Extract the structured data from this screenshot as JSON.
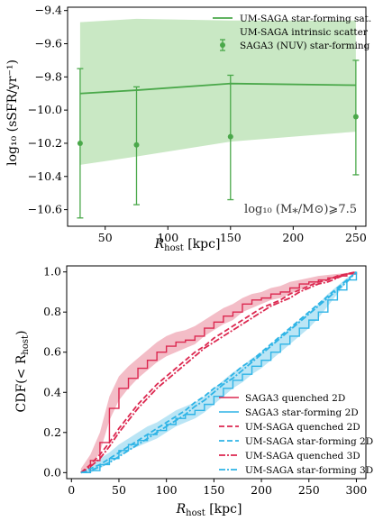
{
  "chart_data": [
    {
      "type": "line",
      "xlabel_main": "R",
      "xlabel_sub": "host",
      "xlabel_unit": " [kpc]",
      "ylabel": "log₁₀ (sSFR/yr⁻¹)",
      "xlim": [
        20,
        258
      ],
      "ylim": [
        -10.7,
        -9.38
      ],
      "xticks": [
        50,
        100,
        150,
        200,
        250
      ],
      "yticks": [
        -10.6,
        -10.4,
        -10.2,
        -10.0,
        -9.8,
        -9.6,
        -9.4
      ],
      "ytick_labels": [
        "−10.6",
        "−10.4",
        "−10.2",
        "−10.0",
        "−9.8",
        "−9.6",
        "−9.4"
      ],
      "annotation": "log₁₀ (M⁎/M⊙)⩾7.5",
      "legend_position": "top-right",
      "colors": {
        "line": "#4aa84a",
        "band": "#c9e8c4"
      },
      "series": [
        {
          "name": "UM-SAGA star-forming sat.",
          "kind": "line",
          "x": [
            30,
            75,
            150,
            250
          ],
          "y": [
            -9.9,
            -9.88,
            -9.84,
            -9.85
          ]
        },
        {
          "name": "UM-SAGA intrinsic scatter",
          "kind": "band",
          "x": [
            30,
            75,
            150,
            250
          ],
          "y_low": [
            -10.33,
            -10.28,
            -10.19,
            -10.13
          ],
          "y_high": [
            -9.47,
            -9.45,
            -9.46,
            -9.46
          ]
        },
        {
          "name": "SAGA3 (NUV) star-forming",
          "kind": "errorbar",
          "x": [
            30,
            75,
            150,
            250
          ],
          "y": [
            -10.2,
            -10.21,
            -10.16,
            -10.04
          ],
          "y_err_low": [
            -10.65,
            -10.57,
            -10.54,
            -10.39
          ],
          "y_err_high": [
            -9.75,
            -9.86,
            -9.79,
            -9.7
          ]
        }
      ]
    },
    {
      "type": "line",
      "xlabel_main": "R",
      "xlabel_sub": "host",
      "xlabel_unit": " [kpc]",
      "ylabel": "CDF(< R_host)",
      "ylabel_main": "CDF(< R",
      "ylabel_sub": "host",
      "ylabel_close": ")",
      "xlim": [
        -5,
        310
      ],
      "ylim": [
        -0.03,
        1.03
      ],
      "xticks": [
        0,
        50,
        100,
        150,
        200,
        250,
        300
      ],
      "yticks": [
        0.0,
        0.2,
        0.4,
        0.6,
        0.8,
        1.0
      ],
      "ytick_labels": [
        "0.0",
        "0.2",
        "0.4",
        "0.6",
        "0.8",
        "1.0"
      ],
      "legend_position": "lower-right",
      "colors": {
        "quenched": "#dc2850",
        "starforming": "#2eb4e6",
        "quenched_band": "#f2b6c1",
        "starforming_band": "#b3e2f4"
      },
      "series": [
        {
          "name": "SAGA3 quenched 2D",
          "kind": "step",
          "x": [
            10,
            20,
            30,
            40,
            50,
            60,
            70,
            80,
            90,
            100,
            110,
            120,
            130,
            140,
            150,
            160,
            170,
            180,
            190,
            200,
            210,
            220,
            230,
            240,
            250,
            260,
            270,
            280,
            290,
            300
          ],
          "y": [
            0.0,
            0.06,
            0.15,
            0.32,
            0.42,
            0.47,
            0.52,
            0.56,
            0.6,
            0.63,
            0.65,
            0.66,
            0.68,
            0.72,
            0.75,
            0.78,
            0.8,
            0.84,
            0.86,
            0.87,
            0.89,
            0.9,
            0.92,
            0.94,
            0.95,
            0.96,
            0.97,
            0.98,
            0.99,
            1.0
          ],
          "band_low": [
            0.0,
            0.03,
            0.1,
            0.26,
            0.36,
            0.42,
            0.47,
            0.51,
            0.55,
            0.58,
            0.6,
            0.62,
            0.64,
            0.68,
            0.71,
            0.74,
            0.76,
            0.8,
            0.82,
            0.84,
            0.86,
            0.87,
            0.89,
            0.91,
            0.93,
            0.94,
            0.96,
            0.97,
            0.985,
            1.0
          ],
          "band_high": [
            0.02,
            0.09,
            0.2,
            0.38,
            0.48,
            0.53,
            0.57,
            0.61,
            0.65,
            0.68,
            0.7,
            0.71,
            0.73,
            0.76,
            0.79,
            0.82,
            0.84,
            0.87,
            0.89,
            0.9,
            0.92,
            0.93,
            0.95,
            0.96,
            0.97,
            0.98,
            0.985,
            0.99,
            0.995,
            1.0
          ]
        },
        {
          "name": "SAGA3 star-forming 2D",
          "kind": "step",
          "x": [
            10,
            20,
            30,
            40,
            50,
            60,
            70,
            80,
            90,
            100,
            110,
            120,
            130,
            140,
            150,
            160,
            170,
            180,
            190,
            200,
            210,
            220,
            230,
            240,
            250,
            260,
            270,
            280,
            290,
            300
          ],
          "y": [
            0.0,
            0.01,
            0.04,
            0.07,
            0.11,
            0.14,
            0.16,
            0.19,
            0.21,
            0.24,
            0.27,
            0.29,
            0.31,
            0.34,
            0.38,
            0.42,
            0.46,
            0.49,
            0.53,
            0.56,
            0.6,
            0.64,
            0.68,
            0.72,
            0.76,
            0.8,
            0.86,
            0.91,
            0.96,
            1.0
          ],
          "band_low": [
            0.0,
            0.0,
            0.02,
            0.05,
            0.08,
            0.11,
            0.13,
            0.15,
            0.17,
            0.2,
            0.23,
            0.25,
            0.27,
            0.3,
            0.34,
            0.38,
            0.42,
            0.45,
            0.49,
            0.52,
            0.56,
            0.6,
            0.64,
            0.68,
            0.72,
            0.77,
            0.83,
            0.89,
            0.95,
            1.0
          ],
          "band_high": [
            0.01,
            0.03,
            0.07,
            0.1,
            0.14,
            0.17,
            0.2,
            0.23,
            0.25,
            0.28,
            0.31,
            0.33,
            0.35,
            0.38,
            0.42,
            0.46,
            0.5,
            0.53,
            0.57,
            0.6,
            0.64,
            0.68,
            0.72,
            0.76,
            0.8,
            0.84,
            0.89,
            0.93,
            0.97,
            1.0
          ]
        },
        {
          "name": "UM-SAGA quenched 2D",
          "kind": "dashed",
          "x": [
            10,
            20,
            30,
            40,
            50,
            60,
            70,
            80,
            90,
            100,
            110,
            120,
            130,
            140,
            150,
            160,
            170,
            180,
            190,
            200,
            210,
            220,
            230,
            240,
            250,
            260,
            270,
            280,
            290,
            300
          ],
          "y": [
            0.0,
            0.04,
            0.09,
            0.15,
            0.22,
            0.28,
            0.34,
            0.39,
            0.44,
            0.48,
            0.52,
            0.56,
            0.6,
            0.63,
            0.67,
            0.7,
            0.73,
            0.76,
            0.79,
            0.82,
            0.84,
            0.86,
            0.89,
            0.91,
            0.93,
            0.95,
            0.96,
            0.98,
            0.99,
            1.0
          ]
        },
        {
          "name": "UM-SAGA star-forming 2D",
          "kind": "dashed",
          "x": [
            10,
            20,
            30,
            40,
            50,
            60,
            70,
            80,
            90,
            100,
            110,
            120,
            130,
            140,
            150,
            160,
            170,
            180,
            190,
            200,
            210,
            220,
            230,
            240,
            250,
            260,
            270,
            280,
            290,
            300
          ],
          "y": [
            0.0,
            0.02,
            0.04,
            0.07,
            0.1,
            0.13,
            0.16,
            0.19,
            0.22,
            0.25,
            0.28,
            0.31,
            0.35,
            0.38,
            0.42,
            0.45,
            0.49,
            0.53,
            0.56,
            0.6,
            0.64,
            0.68,
            0.72,
            0.76,
            0.8,
            0.84,
            0.88,
            0.92,
            0.96,
            1.0
          ]
        },
        {
          "name": "UM-SAGA quenched 3D",
          "kind": "dashdot",
          "x": [
            10,
            20,
            30,
            40,
            50,
            60,
            70,
            80,
            90,
            100,
            110,
            120,
            130,
            140,
            150,
            160,
            170,
            180,
            190,
            200,
            210,
            220,
            230,
            240,
            250,
            260,
            270,
            280,
            290,
            300
          ],
          "y": [
            0.0,
            0.03,
            0.07,
            0.13,
            0.2,
            0.26,
            0.32,
            0.37,
            0.42,
            0.46,
            0.5,
            0.54,
            0.58,
            0.62,
            0.65,
            0.68,
            0.71,
            0.74,
            0.77,
            0.8,
            0.83,
            0.85,
            0.87,
            0.9,
            0.92,
            0.94,
            0.95,
            0.97,
            0.99,
            1.0
          ]
        },
        {
          "name": "UM-SAGA star-forming 3D",
          "kind": "dashdot",
          "x": [
            10,
            20,
            30,
            40,
            50,
            60,
            70,
            80,
            90,
            100,
            110,
            120,
            130,
            140,
            150,
            160,
            170,
            180,
            190,
            200,
            210,
            220,
            230,
            240,
            250,
            260,
            270,
            280,
            290,
            300
          ],
          "y": [
            0.0,
            0.01,
            0.03,
            0.05,
            0.08,
            0.11,
            0.14,
            0.17,
            0.2,
            0.23,
            0.26,
            0.29,
            0.33,
            0.36,
            0.4,
            0.44,
            0.47,
            0.51,
            0.55,
            0.59,
            0.63,
            0.67,
            0.71,
            0.75,
            0.79,
            0.83,
            0.87,
            0.91,
            0.95,
            1.0
          ]
        }
      ]
    }
  ]
}
